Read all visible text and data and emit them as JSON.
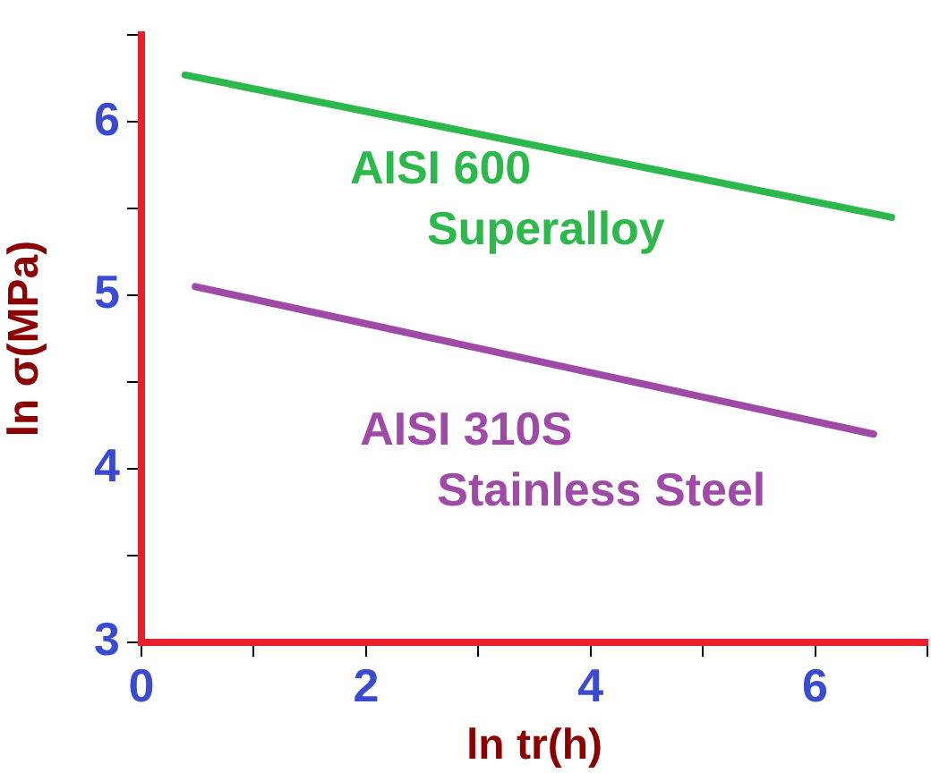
{
  "chart_data": {
    "type": "line",
    "xlabel": "ln tr(h)",
    "ylabel": "ln σ(MPa)",
    "xlim": [
      0,
      7
    ],
    "ylim": [
      3,
      6.5
    ],
    "xticks": [
      0,
      {
        "value": 1,
        "label": null
      },
      2,
      {
        "value": 3,
        "label": null
      },
      4,
      {
        "value": 5,
        "label": null
      },
      6,
      {
        "value": 7,
        "label": null
      }
    ],
    "yticks": [
      3,
      {
        "value": 3.5,
        "label": null
      },
      4,
      {
        "value": 4.5,
        "label": null
      },
      5,
      {
        "value": 5.5,
        "label": null
      },
      6,
      {
        "value": 6.5,
        "label": null
      }
    ],
    "grid": false,
    "legend": false,
    "marker": "none",
    "line_style": "solid",
    "series": [
      {
        "name": "AISI 600 Superalloy",
        "color": "#2db84b",
        "x": [
          0.39,
          6.68
        ],
        "values": [
          6.27,
          5.45
        ]
      },
      {
        "name": "AISI 310S Stainless Steel",
        "color": "#a04aa8",
        "x": [
          0.48,
          6.52
        ],
        "values": [
          5.05,
          4.2
        ]
      }
    ]
  }
}
